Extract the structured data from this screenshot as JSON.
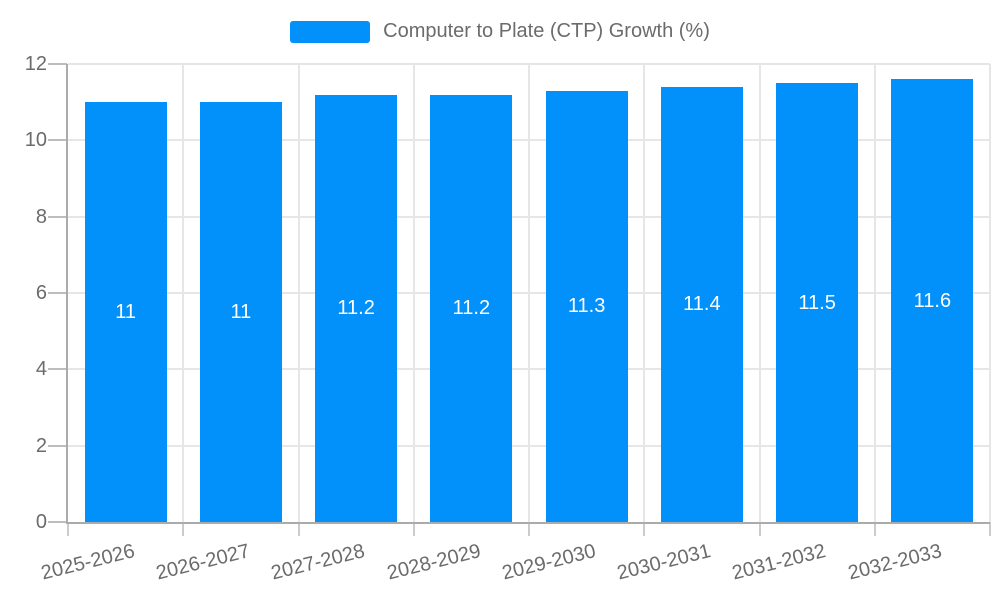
{
  "chart_data": {
    "type": "bar",
    "title": "",
    "categories": [
      "2025-2026",
      "2026-2027",
      "2027-2028",
      "2028-2029",
      "2029-2030",
      "2030-2031",
      "2031-2032",
      "2032-2033"
    ],
    "series": [
      {
        "name": "Computer to Plate (CTP) Growth (%)",
        "values": [
          11,
          11,
          11.2,
          11.2,
          11.3,
          11.4,
          11.5,
          11.6
        ]
      }
    ],
    "value_labels": [
      "11",
      "11",
      "11.2",
      "11.2",
      "11.3",
      "11.4",
      "11.5",
      "11.6"
    ],
    "xlabel": "",
    "ylabel": "",
    "ylim": [
      0,
      12
    ],
    "yticks": [
      0,
      2,
      4,
      6,
      8,
      10,
      12
    ],
    "grid": true,
    "legend_position": "top",
    "colors": {
      "bar": "#0290fa",
      "axis_text": "#6b6b6b",
      "grid_line": "#e6e6e6",
      "axis_line": "#ababab",
      "tick_y": "#bdbdbd",
      "tick_x": "#cccccc",
      "value_label": "#ffffff",
      "background": "#ffffff"
    }
  }
}
